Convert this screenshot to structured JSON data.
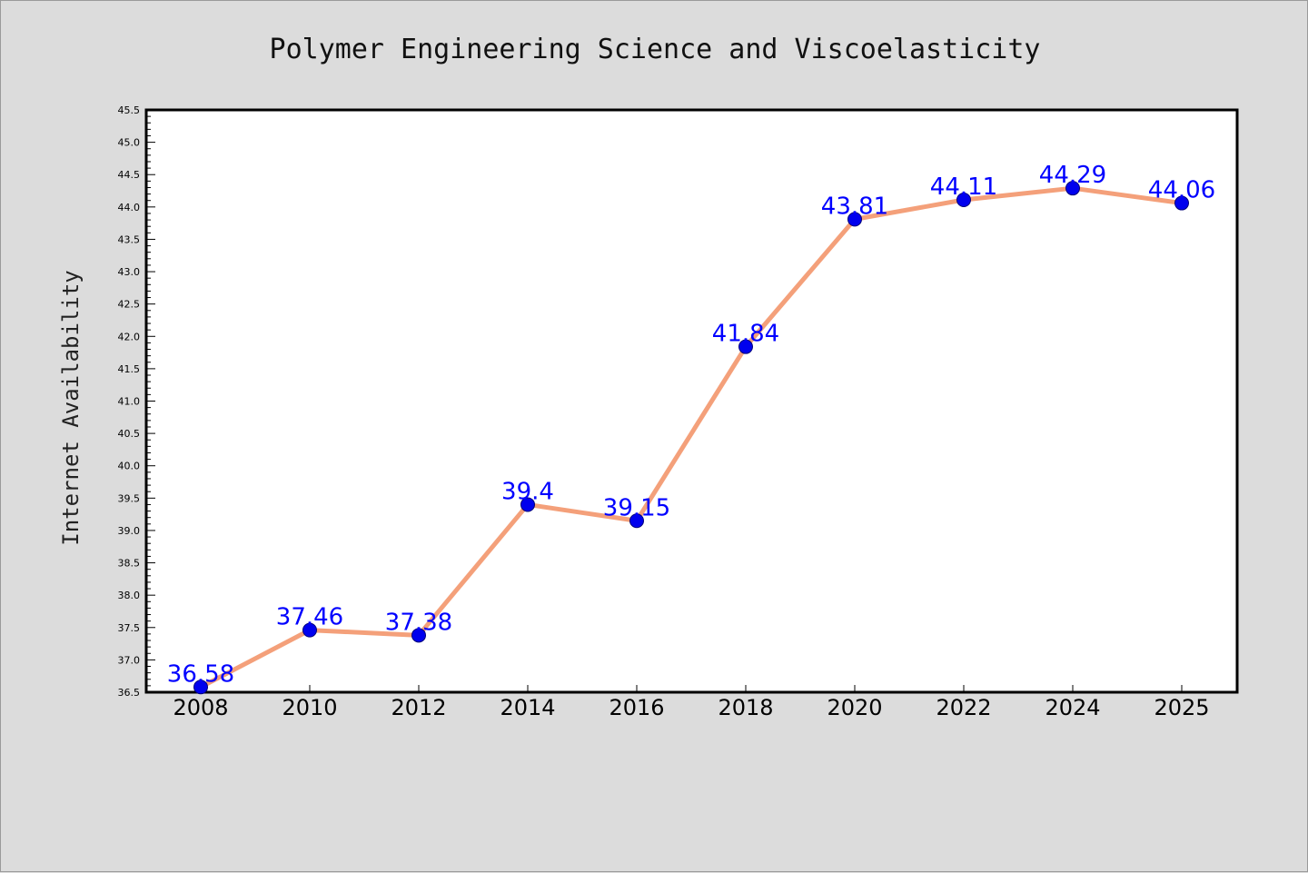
{
  "chart_data": {
    "type": "line",
    "title": "Polymer Engineering Science and Viscoelasticity",
    "xlabel": "",
    "ylabel": "Internet Availability",
    "categories": [
      "2008",
      "2010",
      "2012",
      "2014",
      "2016",
      "2018",
      "2020",
      "2022",
      "2024",
      "2025"
    ],
    "series": [
      {
        "values": [
          36.58,
          37.46,
          37.38,
          39.4,
          39.15,
          41.84,
          43.81,
          44.11,
          44.29,
          44.06
        ],
        "data_labels": [
          "36.58",
          "37.46",
          "37.38",
          "39.4",
          "39.15",
          "41.84",
          "43.81",
          "44.11",
          "44.29",
          "44.06"
        ]
      }
    ],
    "ylim": [
      36.5,
      45.5
    ],
    "y_ticks": [
      "36.5",
      "37.0",
      "37.5",
      "38.0",
      "38.5",
      "39.0",
      "39.5",
      "40.0",
      "40.5",
      "41.0",
      "41.5",
      "42.0",
      "42.5",
      "43.0",
      "43.5",
      "44.0",
      "44.5",
      "45.0",
      "45.5"
    ],
    "grid": false,
    "legend": "none",
    "colors": {
      "figure_background": "#dcdcdc",
      "plot_background": "#ffffff",
      "line": "#f4a07a",
      "marker": "#0000ee",
      "data_label": "#0000ff",
      "axis": "#000000"
    }
  }
}
